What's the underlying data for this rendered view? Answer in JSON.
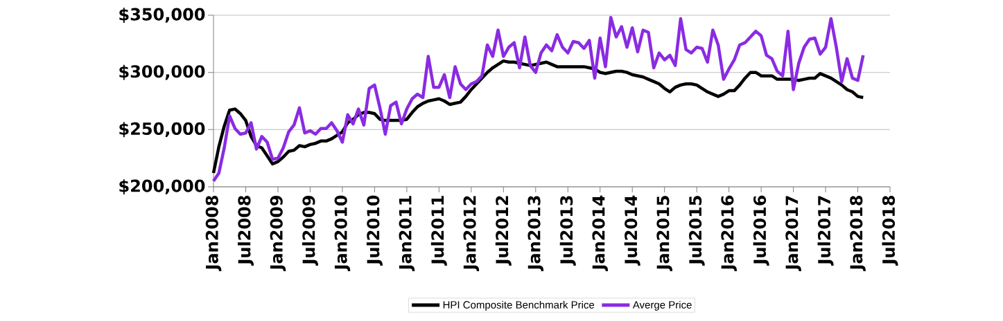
{
  "chart_data": {
    "type": "line",
    "x": [
      "2008-01",
      "2008-02",
      "2008-03",
      "2008-04",
      "2008-05",
      "2008-06",
      "2008-07",
      "2008-08",
      "2008-09",
      "2008-10",
      "2008-11",
      "2008-12",
      "2009-01",
      "2009-02",
      "2009-03",
      "2009-04",
      "2009-05",
      "2009-06",
      "2009-07",
      "2009-08",
      "2009-09",
      "2009-10",
      "2009-11",
      "2009-12",
      "2010-01",
      "2010-02",
      "2010-03",
      "2010-04",
      "2010-05",
      "2010-06",
      "2010-07",
      "2010-08",
      "2010-09",
      "2010-10",
      "2010-11",
      "2010-12",
      "2011-01",
      "2011-02",
      "2011-03",
      "2011-04",
      "2011-05",
      "2011-06",
      "2011-07",
      "2011-08",
      "2011-09",
      "2011-10",
      "2011-11",
      "2011-12",
      "2012-01",
      "2012-02",
      "2012-03",
      "2012-04",
      "2012-05",
      "2012-06",
      "2012-07",
      "2012-08",
      "2012-09",
      "2012-10",
      "2012-11",
      "2012-12",
      "2013-01",
      "2013-02",
      "2013-03",
      "2013-04",
      "2013-05",
      "2013-06",
      "2013-07",
      "2013-08",
      "2013-09",
      "2013-10",
      "2013-11",
      "2013-12",
      "2014-01",
      "2014-02",
      "2014-03",
      "2014-04",
      "2014-05",
      "2014-06",
      "2014-07",
      "2014-08",
      "2014-09",
      "2014-10",
      "2014-11",
      "2014-12",
      "2015-01",
      "2015-02",
      "2015-03",
      "2015-04",
      "2015-05",
      "2015-06",
      "2015-07",
      "2015-08",
      "2015-09",
      "2015-10",
      "2015-11",
      "2015-12",
      "2016-01",
      "2016-02",
      "2016-03",
      "2016-04",
      "2016-05",
      "2016-06",
      "2016-07",
      "2016-08",
      "2016-09",
      "2016-10",
      "2016-11",
      "2016-12",
      "2017-01",
      "2017-02",
      "2017-03",
      "2017-04",
      "2017-05",
      "2017-06",
      "2017-07",
      "2017-08",
      "2017-09",
      "2017-10",
      "2017-11",
      "2017-12",
      "2018-01",
      "2018-02"
    ],
    "series": [
      {
        "name": "HPI Composite Benchmark Price",
        "color": "#000000",
        "values": [
          212000,
          235000,
          253000,
          267000,
          268000,
          264000,
          258000,
          244000,
          236000,
          234000,
          227000,
          220000,
          222000,
          226000,
          231000,
          232000,
          236000,
          235000,
          237000,
          238000,
          240000,
          240000,
          242000,
          245000,
          248000,
          256000,
          259000,
          263000,
          265000,
          265000,
          264000,
          259000,
          258000,
          258000,
          258000,
          258000,
          259000,
          265000,
          270000,
          273000,
          275000,
          276000,
          277000,
          275000,
          272000,
          273000,
          274000,
          279000,
          285000,
          290000,
          295000,
          300000,
          304000,
          307000,
          310000,
          309000,
          309000,
          308000,
          307000,
          306000,
          307000,
          308000,
          309000,
          307000,
          305000,
          305000,
          305000,
          305000,
          305000,
          305000,
          304000,
          303000,
          300000,
          299000,
          300000,
          301000,
          301000,
          300000,
          298000,
          297000,
          296000,
          294000,
          292000,
          290000,
          286000,
          283000,
          287000,
          289000,
          290000,
          290000,
          289000,
          286000,
          283000,
          281000,
          279000,
          281000,
          284000,
          284000,
          289000,
          295000,
          300000,
          300000,
          297000,
          297000,
          297000,
          294000,
          294000,
          294000,
          294000,
          293000,
          294000,
          295000,
          295000,
          299000,
          297000,
          295000,
          292000,
          289000,
          285000,
          283000,
          279000,
          278000
        ]
      },
      {
        "name": "Averge Price",
        "color": "#8a2be2",
        "values": [
          205000,
          212000,
          234000,
          262000,
          251000,
          246000,
          247000,
          256000,
          233000,
          244000,
          239000,
          224000,
          225000,
          234000,
          248000,
          254000,
          269000,
          247000,
          249000,
          246000,
          251000,
          251000,
          256000,
          249000,
          239000,
          263000,
          255000,
          268000,
          254000,
          286000,
          289000,
          269000,
          246000,
          271000,
          274000,
          255000,
          268000,
          277000,
          281000,
          278000,
          314000,
          287000,
          287000,
          298000,
          278000,
          305000,
          290000,
          285000,
          290000,
          292000,
          297000,
          324000,
          314000,
          337000,
          314000,
          322000,
          326000,
          304000,
          331000,
          306000,
          300000,
          317000,
          324000,
          319000,
          333000,
          322000,
          317000,
          327000,
          326000,
          321000,
          328000,
          295000,
          330000,
          305000,
          348000,
          331000,
          340000,
          322000,
          339000,
          318000,
          337000,
          335000,
          304000,
          317000,
          311000,
          315000,
          306000,
          347000,
          320000,
          317000,
          322000,
          321000,
          309000,
          337000,
          324000,
          294000,
          303000,
          311000,
          324000,
          326000,
          331000,
          336000,
          332000,
          315000,
          312000,
          301000,
          297000,
          336000,
          285000,
          308000,
          322000,
          329000,
          330000,
          316000,
          322000,
          347000,
          322000,
          292000,
          312000,
          295000,
          293000,
          315000
        ]
      }
    ],
    "xlim": [
      "2008-01",
      "2018-07"
    ],
    "xticks": [
      {
        "value": "2008-01",
        "label": "Jan2008"
      },
      {
        "value": "2008-07",
        "label": "Jul2008"
      },
      {
        "value": "2009-01",
        "label": "Jan2009"
      },
      {
        "value": "2009-07",
        "label": "Jul2009"
      },
      {
        "value": "2010-01",
        "label": "Jan2010"
      },
      {
        "value": "2010-07",
        "label": "Jul2010"
      },
      {
        "value": "2011-01",
        "label": "Jan2011"
      },
      {
        "value": "2011-07",
        "label": "Jul2011"
      },
      {
        "value": "2012-01",
        "label": "Jan2012"
      },
      {
        "value": "2012-07",
        "label": "Jul2012"
      },
      {
        "value": "2013-01",
        "label": "Jan2013"
      },
      {
        "value": "2013-07",
        "label": "Jul2013"
      },
      {
        "value": "2014-01",
        "label": "Jan2014"
      },
      {
        "value": "2014-07",
        "label": "Jul2014"
      },
      {
        "value": "2015-01",
        "label": "Jan2015"
      },
      {
        "value": "2015-07",
        "label": "Jul2015"
      },
      {
        "value": "2016-01",
        "label": "Jan2016"
      },
      {
        "value": "2016-07",
        "label": "Jul2016"
      },
      {
        "value": "2017-01",
        "label": "Jan2017"
      },
      {
        "value": "2017-07",
        "label": "Jul2017"
      },
      {
        "value": "2018-01",
        "label": "Jan2018"
      },
      {
        "value": "2018-07",
        "label": "Jul2018"
      }
    ],
    "ylim": [
      200000,
      350000
    ],
    "yticks": [
      {
        "value": 200000,
        "label": "$200,000"
      },
      {
        "value": 250000,
        "label": "$250,000"
      },
      {
        "value": 300000,
        "label": "$300,000"
      },
      {
        "value": 350000,
        "label": "$350,000"
      }
    ],
    "grid": "y",
    "legend": "bottom",
    "marker": "none",
    "line_style": "solid"
  }
}
